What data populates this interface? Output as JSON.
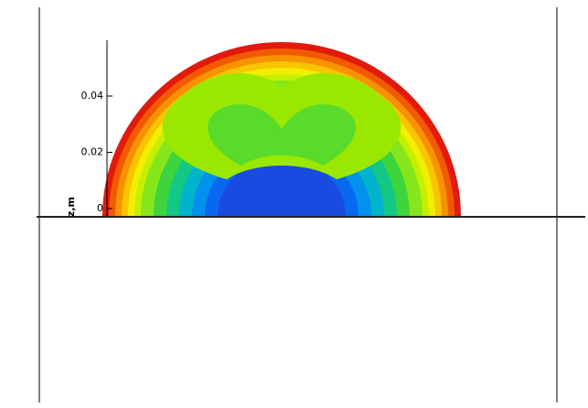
{
  "chart_data": {
    "type": "contour",
    "y_label": "z,m",
    "ylim": [
      0,
      0.06
    ],
    "yticks": [
      0,
      0.02,
      0.04
    ],
    "colors": [
      "#e21a0c",
      "#f25a00",
      "#f79200",
      "#f9c400",
      "#f2ee00",
      "#c4f000",
      "#86e61c",
      "#3ed43c",
      "#12c884",
      "#00b4cc",
      "#0092ec",
      "#0a68f0",
      "#1a4ae0"
    ],
    "core_color": "#9ae800"
  }
}
